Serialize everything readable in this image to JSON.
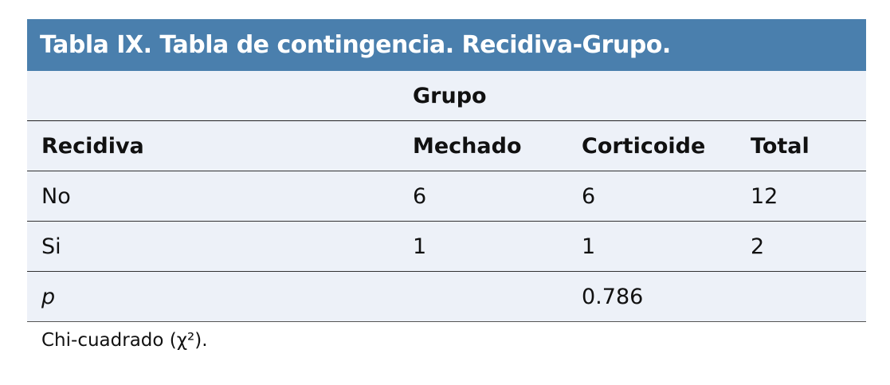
{
  "title": "Tabla IX. Tabla de contingencia. Recidiva-Grupo.",
  "group_header": "Grupo",
  "columns": [
    "Recidiva",
    "Mechado",
    "Corticoide",
    "Total"
  ],
  "rows": [
    [
      "No",
      "6",
      "6",
      "12"
    ],
    [
      "Si",
      "1",
      "1",
      "2"
    ]
  ],
  "p_row": {
    "label": "p",
    "value": "0.786"
  },
  "footnote": "Chi-cuadrado (χ²).",
  "colors": {
    "title_bar": "#4a7fad",
    "table_bg": "#edf1f8"
  }
}
